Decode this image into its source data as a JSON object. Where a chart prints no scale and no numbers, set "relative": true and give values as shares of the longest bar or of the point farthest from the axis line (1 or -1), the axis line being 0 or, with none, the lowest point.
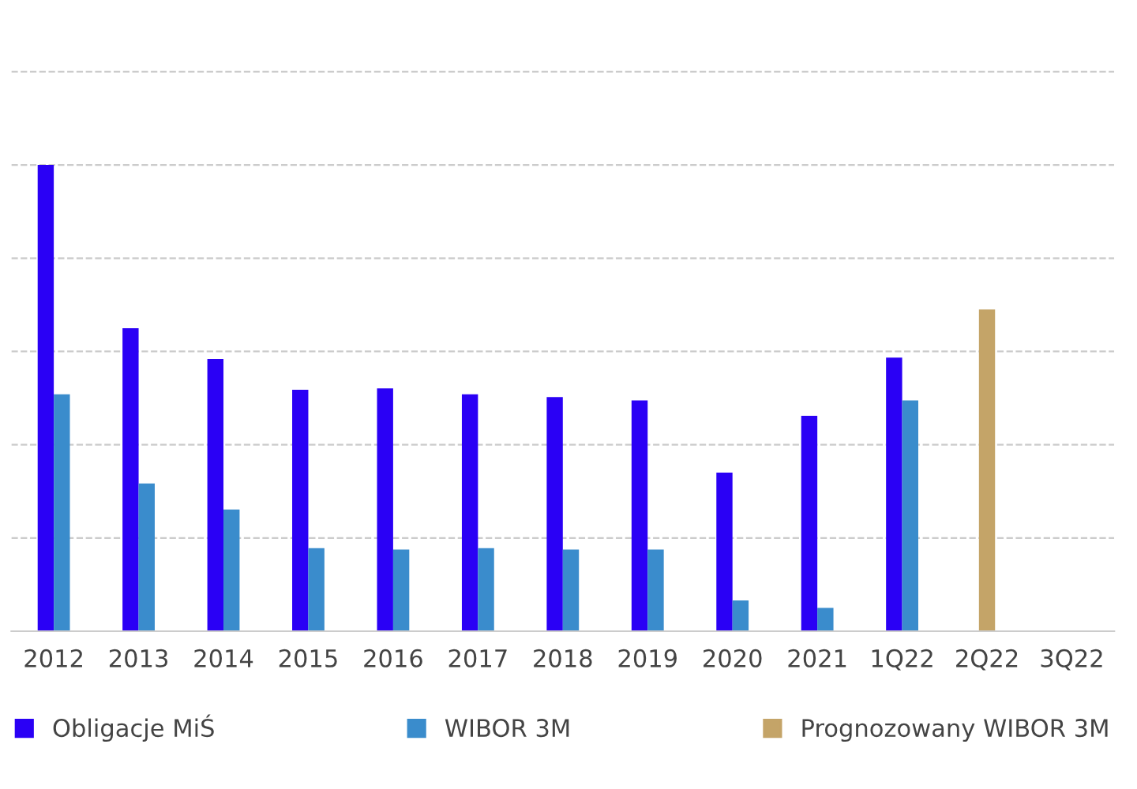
{
  "chart_data": {
    "type": "bar",
    "relative": true,
    "grid": "y",
    "legend": "bottom",
    "categories": [
      "2012",
      "2013",
      "2014",
      "2015",
      "2016",
      "2017",
      "2018",
      "2019",
      "2020",
      "2021",
      "1Q22",
      "2Q22",
      "3Q22"
    ],
    "series": [
      {
        "name": "Obligacje MiŚ",
        "color": "#2a00f5",
        "values": [
          1,
          0.65,
          0.584,
          0.518,
          0.521,
          0.508,
          0.502,
          0.495,
          0.34,
          0.462,
          0.587,
          null,
          null
        ]
      },
      {
        "name": "WIBOR 3M",
        "color": "#3a8ccc",
        "values": [
          0.508,
          0.317,
          0.261,
          0.178,
          0.175,
          0.178,
          0.175,
          0.175,
          0.066,
          0.05,
          0.495,
          null,
          null
        ]
      },
      {
        "name": "Prognozowany WIBOR 3M",
        "color": "#c4a468",
        "values": [
          null,
          null,
          null,
          null,
          null,
          null,
          null,
          null,
          null,
          null,
          null,
          0.69,
          null
        ]
      }
    ]
  }
}
